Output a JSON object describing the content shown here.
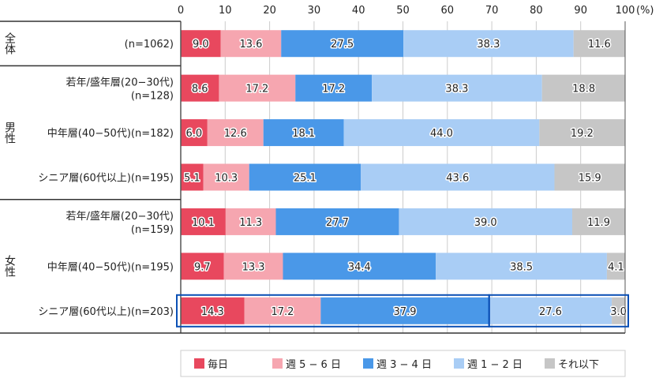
{
  "chart_data": {
    "type": "bar",
    "orientation": "horizontal",
    "stacked": true,
    "xlim": [
      0,
      100
    ],
    "ticks": [
      0,
      10,
      20,
      30,
      40,
      50,
      60,
      70,
      80,
      90,
      100
    ],
    "unit_label": "(%)",
    "grid": true,
    "legend_placement": "bottom",
    "series": [
      {
        "name": "毎日",
        "color": "#e8485e"
      },
      {
        "name": "週 5 − 6 日",
        "color": "#f6a6b0"
      },
      {
        "name": "週 3 − 4 日",
        "color": "#4a98e8"
      },
      {
        "name": "週 1 − 2 日",
        "color": "#a9cdf5"
      },
      {
        "name": "それ以下",
        "color": "#c6c6c6"
      }
    ],
    "groups": [
      {
        "label": "全体",
        "rows": [
          0
        ]
      },
      {
        "label": "男性",
        "rows": [
          1,
          2,
          3
        ]
      },
      {
        "label": "女性",
        "rows": [
          4,
          5,
          6
        ]
      }
    ],
    "rows": [
      {
        "label": [
          "(n=1062)"
        ],
        "values": [
          9.0,
          13.6,
          27.5,
          38.3,
          11.6
        ]
      },
      {
        "label": [
          "若年/盛年層(20−30代)",
          "(n=128)"
        ],
        "values": [
          8.6,
          17.2,
          17.2,
          38.3,
          18.8
        ]
      },
      {
        "label": [
          "中年層(40−50代)(n=182)"
        ],
        "values": [
          6.0,
          12.6,
          18.1,
          44.0,
          19.2
        ]
      },
      {
        "label": [
          "シニア層(60代以上)(n=195)"
        ],
        "values": [
          5.1,
          10.3,
          25.1,
          43.6,
          15.9
        ]
      },
      {
        "label": [
          "若年/盛年層(20−30代)",
          "(n=159)"
        ],
        "values": [
          10.1,
          11.3,
          27.7,
          39.0,
          11.9
        ]
      },
      {
        "label": [
          "中年層(40−50代)(n=195)"
        ],
        "values": [
          9.7,
          13.3,
          34.4,
          38.5,
          4.1
        ]
      },
      {
        "label": [
          "シニア層(60代以上)(n=203)"
        ],
        "values": [
          14.3,
          17.2,
          37.9,
          27.6,
          3.0
        ]
      }
    ],
    "highlight": {
      "row": 6,
      "color": "#0a4fb5"
    }
  }
}
